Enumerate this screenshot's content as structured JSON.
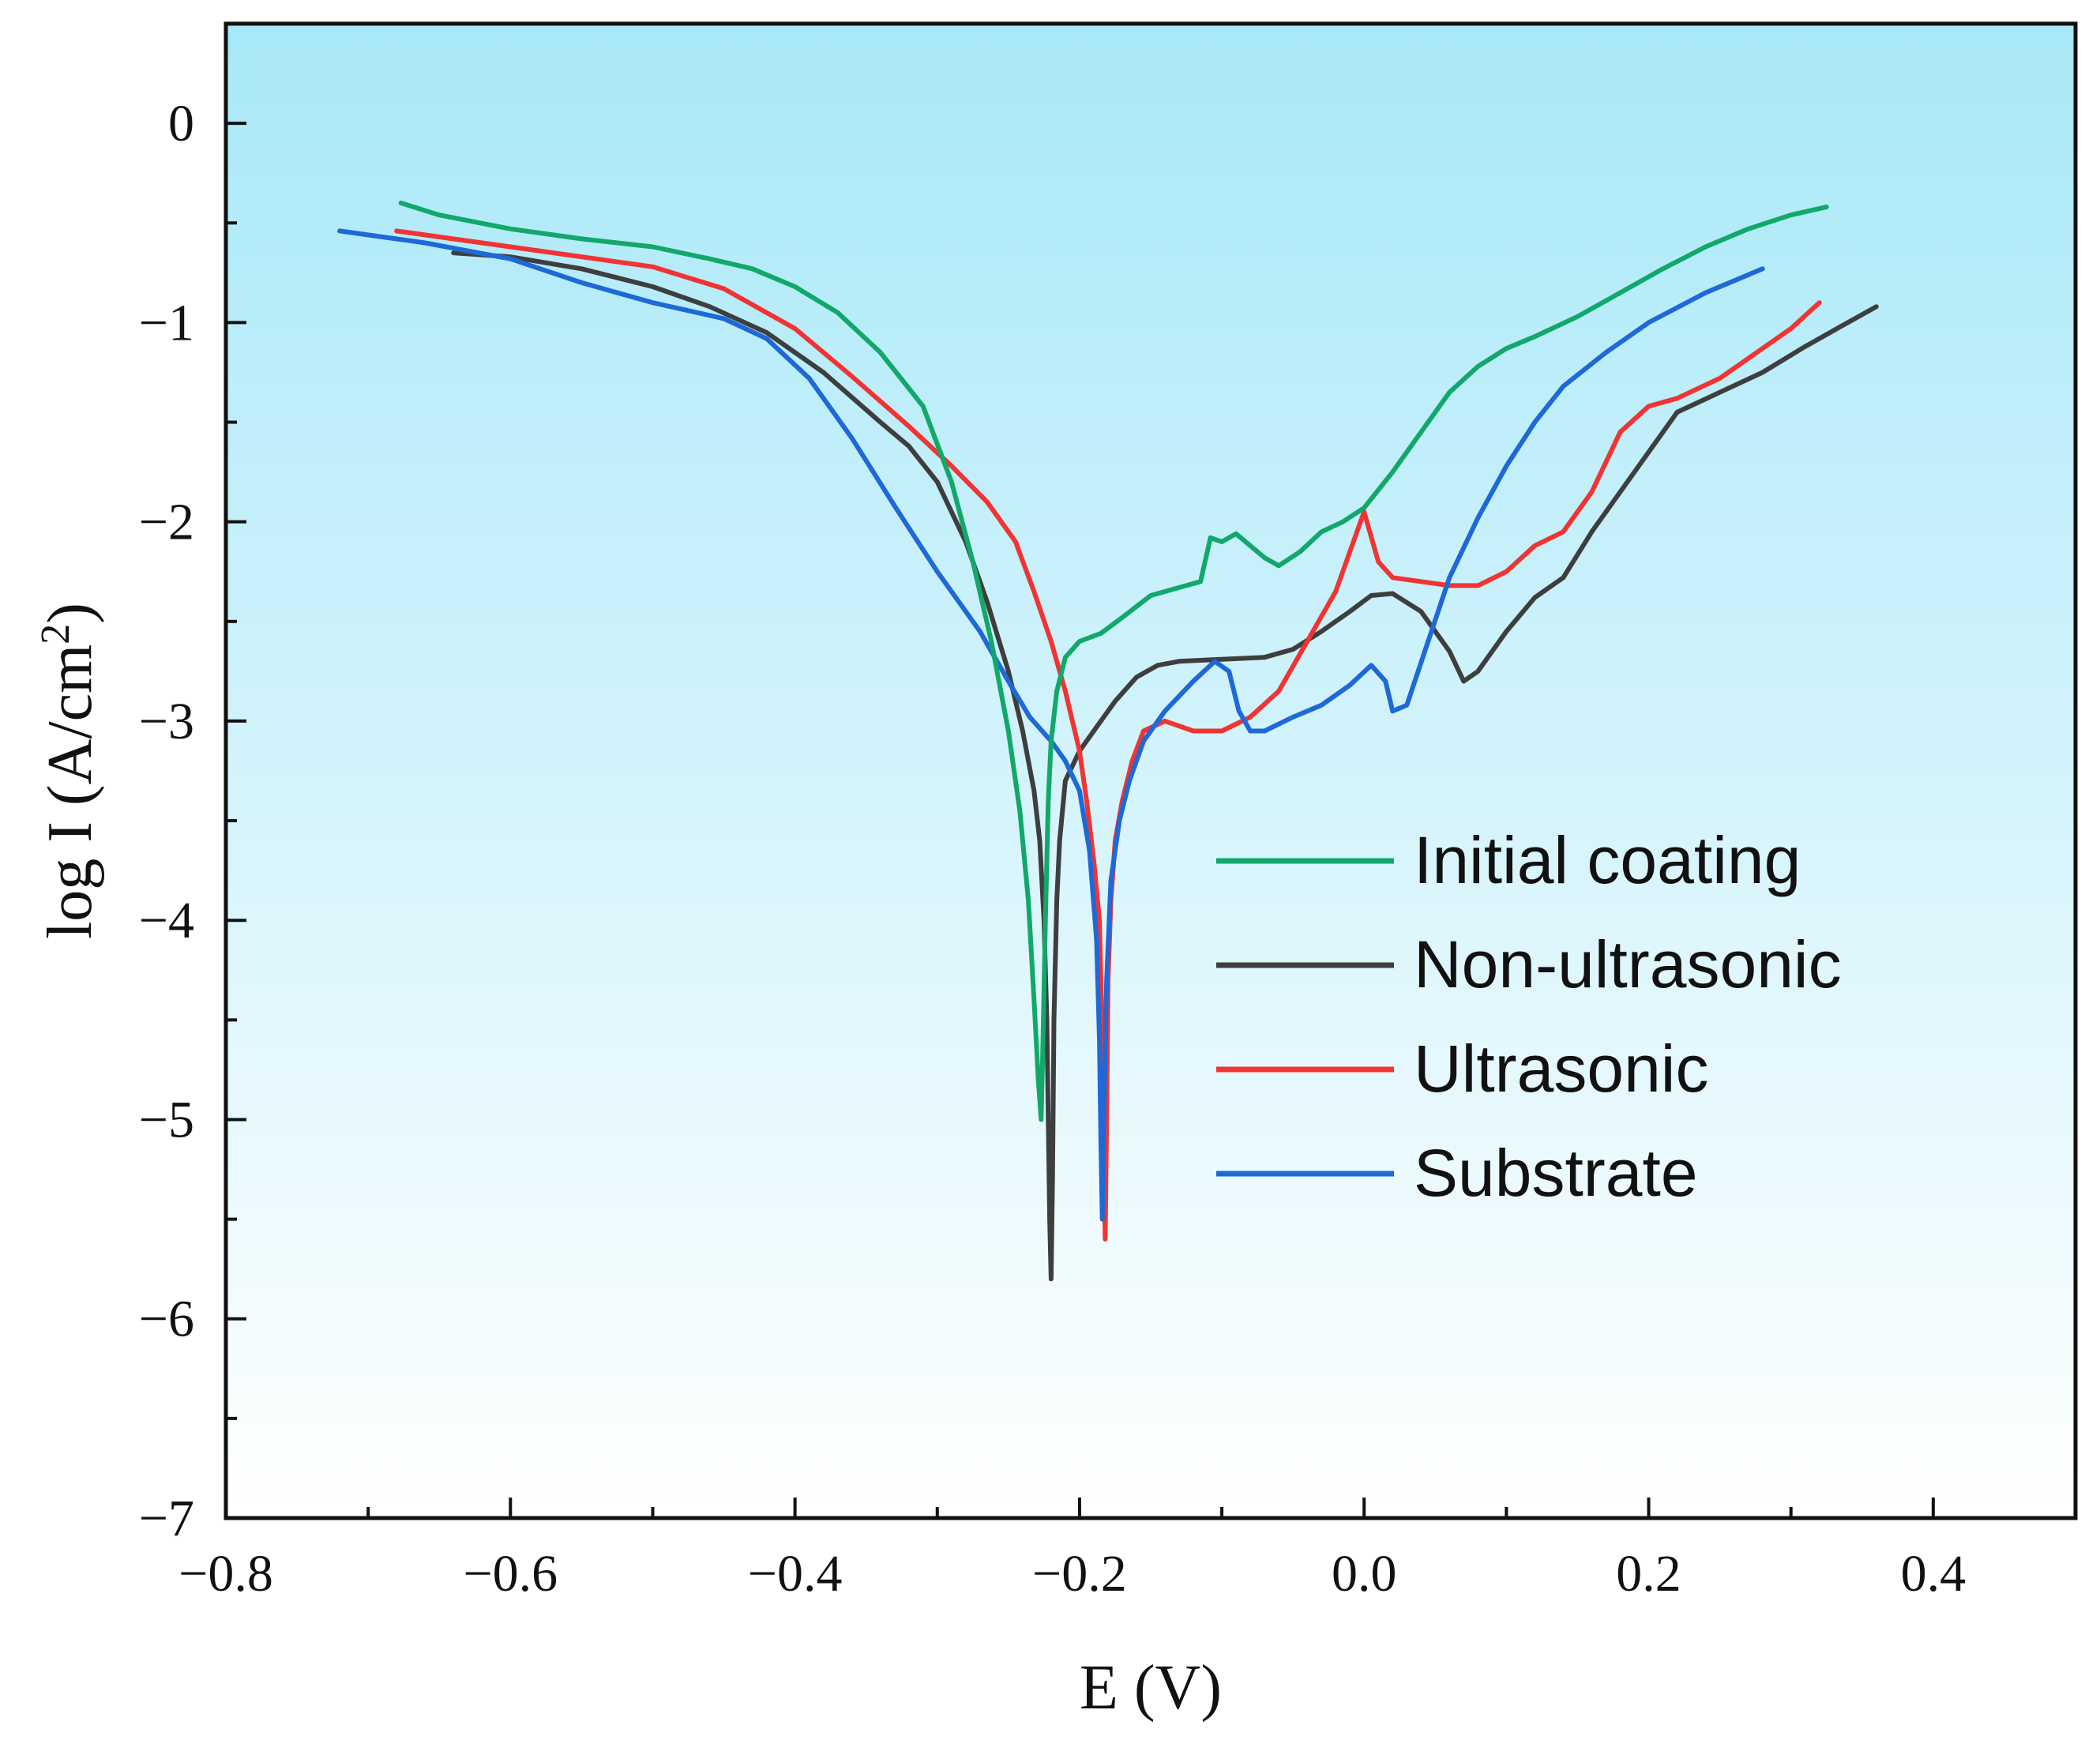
{
  "chart_data": {
    "type": "line",
    "title": "",
    "xlabel": "E (V)",
    "ylabel_main": "log I (A/cm",
    "ylabel_sup": "2",
    "ylabel_close": ")",
    "xlim": [
      -0.8,
      0.5
    ],
    "ylim": [
      -7,
      0.5
    ],
    "xticks": [
      -0.8,
      -0.6,
      -0.4,
      -0.2,
      0.0,
      0.2,
      0.4
    ],
    "xtick_labels": [
      "−0.8",
      "−0.6",
      "−0.4",
      "−0.2",
      "0.0",
      "0.2",
      "0.4"
    ],
    "yticks": [
      0,
      -1,
      -2,
      -3,
      -4,
      -5,
      -6,
      -7
    ],
    "ytick_labels": [
      "0",
      "−1",
      "−2",
      "−3",
      "−4",
      "−5",
      "−6",
      "−7"
    ],
    "grid": false,
    "legend_position": "center-right",
    "background_gradient": [
      "#a8e8f8",
      "#ffffff"
    ],
    "series": [
      {
        "name": "Initial coating",
        "color": "#11a86a",
        "points": [
          [
            -0.677,
            -0.4
          ],
          [
            -0.65,
            -0.46
          ],
          [
            -0.6,
            -0.53
          ],
          [
            -0.55,
            -0.58
          ],
          [
            -0.5,
            -0.62
          ],
          [
            -0.46,
            -0.68
          ],
          [
            -0.43,
            -0.73
          ],
          [
            -0.4,
            -0.82
          ],
          [
            -0.37,
            -0.95
          ],
          [
            -0.34,
            -1.15
          ],
          [
            -0.31,
            -1.42
          ],
          [
            -0.29,
            -1.8
          ],
          [
            -0.275,
            -2.2
          ],
          [
            -0.262,
            -2.6
          ],
          [
            -0.25,
            -3.05
          ],
          [
            -0.242,
            -3.45
          ],
          [
            -0.236,
            -3.9
          ],
          [
            -0.232,
            -4.4
          ],
          [
            -0.229,
            -4.8
          ],
          [
            -0.227,
            -5.0
          ],
          [
            -0.226,
            -4.7
          ],
          [
            -0.224,
            -4.0
          ],
          [
            -0.222,
            -3.4
          ],
          [
            -0.22,
            -3.1
          ],
          [
            -0.216,
            -2.85
          ],
          [
            -0.21,
            -2.68
          ],
          [
            -0.2,
            -2.6
          ],
          [
            -0.185,
            -2.56
          ],
          [
            -0.17,
            -2.48
          ],
          [
            -0.15,
            -2.37
          ],
          [
            -0.13,
            -2.33
          ],
          [
            -0.115,
            -2.3
          ],
          [
            -0.108,
            -2.08
          ],
          [
            -0.1,
            -2.1
          ],
          [
            -0.09,
            -2.06
          ],
          [
            -0.08,
            -2.12
          ],
          [
            -0.07,
            -2.18
          ],
          [
            -0.06,
            -2.22
          ],
          [
            -0.045,
            -2.15
          ],
          [
            -0.03,
            -2.05
          ],
          [
            -0.015,
            -2.0
          ],
          [
            0.0,
            -1.93
          ],
          [
            0.02,
            -1.75
          ],
          [
            0.04,
            -1.55
          ],
          [
            0.06,
            -1.35
          ],
          [
            0.08,
            -1.22
          ],
          [
            0.1,
            -1.13
          ],
          [
            0.12,
            -1.07
          ],
          [
            0.15,
            -0.97
          ],
          [
            0.18,
            -0.85
          ],
          [
            0.21,
            -0.73
          ],
          [
            0.24,
            -0.62
          ],
          [
            0.27,
            -0.53
          ],
          [
            0.3,
            -0.46
          ],
          [
            0.325,
            -0.42
          ]
        ]
      },
      {
        "name": "Non-ultrasonic",
        "color": "#3e3e3e",
        "points": [
          [
            -0.64,
            -0.65
          ],
          [
            -0.6,
            -0.67
          ],
          [
            -0.55,
            -0.73
          ],
          [
            -0.5,
            -0.82
          ],
          [
            -0.46,
            -0.92
          ],
          [
            -0.42,
            -1.05
          ],
          [
            -0.38,
            -1.25
          ],
          [
            -0.34,
            -1.5
          ],
          [
            -0.32,
            -1.62
          ],
          [
            -0.3,
            -1.8
          ],
          [
            -0.28,
            -2.1
          ],
          [
            -0.265,
            -2.4
          ],
          [
            -0.25,
            -2.75
          ],
          [
            -0.24,
            -3.05
          ],
          [
            -0.232,
            -3.35
          ],
          [
            -0.228,
            -3.6
          ],
          [
            -0.225,
            -4.0
          ],
          [
            -0.223,
            -4.5
          ],
          [
            -0.222,
            -5.0
          ],
          [
            -0.221,
            -5.5
          ],
          [
            -0.22,
            -5.8
          ],
          [
            -0.219,
            -5.3
          ],
          [
            -0.218,
            -4.5
          ],
          [
            -0.216,
            -3.9
          ],
          [
            -0.214,
            -3.6
          ],
          [
            -0.21,
            -3.3
          ],
          [
            -0.2,
            -3.15
          ],
          [
            -0.19,
            -3.05
          ],
          [
            -0.175,
            -2.9
          ],
          [
            -0.16,
            -2.78
          ],
          [
            -0.145,
            -2.72
          ],
          [
            -0.13,
            -2.7
          ],
          [
            -0.1,
            -2.69
          ],
          [
            -0.07,
            -2.68
          ],
          [
            -0.05,
            -2.64
          ],
          [
            -0.03,
            -2.55
          ],
          [
            -0.01,
            -2.45
          ],
          [
            0.005,
            -2.37
          ],
          [
            0.02,
            -2.36
          ],
          [
            0.04,
            -2.45
          ],
          [
            0.06,
            -2.65
          ],
          [
            0.07,
            -2.8
          ],
          [
            0.08,
            -2.75
          ],
          [
            0.1,
            -2.55
          ],
          [
            0.12,
            -2.38
          ],
          [
            0.14,
            -2.28
          ],
          [
            0.16,
            -2.05
          ],
          [
            0.19,
            -1.75
          ],
          [
            0.22,
            -1.45
          ],
          [
            0.25,
            -1.35
          ],
          [
            0.28,
            -1.25
          ],
          [
            0.31,
            -1.12
          ],
          [
            0.335,
            -1.02
          ],
          [
            0.36,
            -0.92
          ]
        ]
      },
      {
        "name": "Ultrasonic",
        "color": "#f03434",
        "points": [
          [
            -0.68,
            -0.54
          ],
          [
            -0.62,
            -0.6
          ],
          [
            -0.56,
            -0.66
          ],
          [
            -0.5,
            -0.72
          ],
          [
            -0.45,
            -0.83
          ],
          [
            -0.4,
            -1.03
          ],
          [
            -0.36,
            -1.27
          ],
          [
            -0.32,
            -1.52
          ],
          [
            -0.29,
            -1.72
          ],
          [
            -0.265,
            -1.9
          ],
          [
            -0.245,
            -2.1
          ],
          [
            -0.232,
            -2.35
          ],
          [
            -0.22,
            -2.6
          ],
          [
            -0.21,
            -2.85
          ],
          [
            -0.2,
            -3.15
          ],
          [
            -0.195,
            -3.4
          ],
          [
            -0.19,
            -3.7
          ],
          [
            -0.186,
            -4.0
          ],
          [
            -0.184,
            -4.6
          ],
          [
            -0.183,
            -5.2
          ],
          [
            -0.182,
            -5.6
          ],
          [
            -0.181,
            -5.0
          ],
          [
            -0.18,
            -4.3
          ],
          [
            -0.178,
            -3.9
          ],
          [
            -0.175,
            -3.6
          ],
          [
            -0.17,
            -3.4
          ],
          [
            -0.163,
            -3.2
          ],
          [
            -0.155,
            -3.05
          ],
          [
            -0.14,
            -3.0
          ],
          [
            -0.12,
            -3.05
          ],
          [
            -0.1,
            -3.05
          ],
          [
            -0.08,
            -2.98
          ],
          [
            -0.06,
            -2.85
          ],
          [
            -0.04,
            -2.6
          ],
          [
            -0.02,
            -2.35
          ],
          [
            -0.01,
            -2.15
          ],
          [
            0.0,
            -1.95
          ],
          [
            0.01,
            -2.2
          ],
          [
            0.02,
            -2.28
          ],
          [
            0.04,
            -2.3
          ],
          [
            0.06,
            -2.32
          ],
          [
            0.08,
            -2.32
          ],
          [
            0.1,
            -2.25
          ],
          [
            0.12,
            -2.12
          ],
          [
            0.14,
            -2.05
          ],
          [
            0.16,
            -1.85
          ],
          [
            0.18,
            -1.55
          ],
          [
            0.2,
            -1.42
          ],
          [
            0.22,
            -1.38
          ],
          [
            0.25,
            -1.28
          ],
          [
            0.28,
            -1.13
          ],
          [
            0.3,
            -1.03
          ],
          [
            0.32,
            -0.9
          ]
        ]
      },
      {
        "name": "Substrate",
        "color": "#1e68d8",
        "points": [
          [
            -0.72,
            -0.54
          ],
          [
            -0.66,
            -0.6
          ],
          [
            -0.6,
            -0.68
          ],
          [
            -0.55,
            -0.8
          ],
          [
            -0.5,
            -0.9
          ],
          [
            -0.45,
            -0.98
          ],
          [
            -0.42,
            -1.08
          ],
          [
            -0.39,
            -1.28
          ],
          [
            -0.36,
            -1.58
          ],
          [
            -0.33,
            -1.92
          ],
          [
            -0.3,
            -2.25
          ],
          [
            -0.27,
            -2.55
          ],
          [
            -0.25,
            -2.8
          ],
          [
            -0.235,
            -2.98
          ],
          [
            -0.22,
            -3.1
          ],
          [
            -0.21,
            -3.2
          ],
          [
            -0.2,
            -3.35
          ],
          [
            -0.193,
            -3.65
          ],
          [
            -0.188,
            -4.1
          ],
          [
            -0.186,
            -4.6
          ],
          [
            -0.185,
            -5.1
          ],
          [
            -0.184,
            -5.5
          ],
          [
            -0.183,
            -5.0
          ],
          [
            -0.181,
            -4.3
          ],
          [
            -0.178,
            -3.8
          ],
          [
            -0.172,
            -3.5
          ],
          [
            -0.165,
            -3.3
          ],
          [
            -0.155,
            -3.1
          ],
          [
            -0.14,
            -2.95
          ],
          [
            -0.12,
            -2.8
          ],
          [
            -0.105,
            -2.7
          ],
          [
            -0.095,
            -2.75
          ],
          [
            -0.088,
            -2.95
          ],
          [
            -0.08,
            -3.05
          ],
          [
            -0.07,
            -3.05
          ],
          [
            -0.05,
            -2.98
          ],
          [
            -0.03,
            -2.92
          ],
          [
            -0.01,
            -2.82
          ],
          [
            0.005,
            -2.72
          ],
          [
            0.015,
            -2.8
          ],
          [
            0.02,
            -2.95
          ],
          [
            0.03,
            -2.92
          ],
          [
            0.045,
            -2.6
          ],
          [
            0.06,
            -2.28
          ],
          [
            0.08,
            -1.98
          ],
          [
            0.1,
            -1.72
          ],
          [
            0.12,
            -1.5
          ],
          [
            0.14,
            -1.32
          ],
          [
            0.17,
            -1.15
          ],
          [
            0.2,
            -1.0
          ],
          [
            0.24,
            -0.85
          ],
          [
            0.28,
            -0.73
          ]
        ]
      }
    ]
  }
}
